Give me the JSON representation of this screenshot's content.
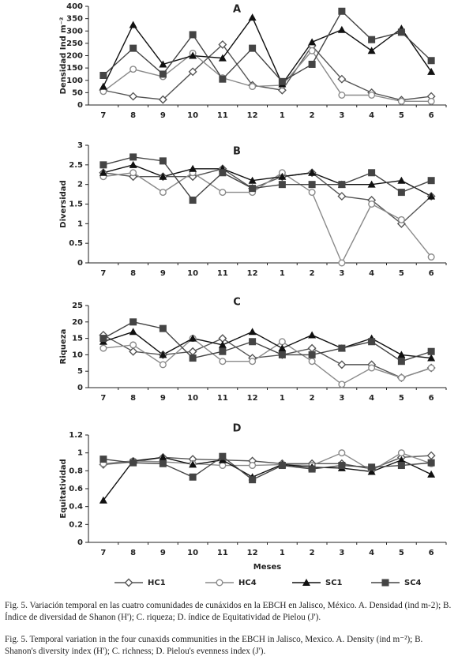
{
  "chart_data": [
    {
      "type": "line",
      "title": "A",
      "ylabel": "Densidad Ind m⁻²",
      "categories": [
        "7",
        "8",
        "9",
        "10",
        "11",
        "12",
        "1",
        "2",
        "3",
        "4",
        "5",
        "6"
      ],
      "ylim": [
        0,
        400
      ],
      "yticks": [
        0,
        50,
        100,
        150,
        200,
        250,
        300,
        350,
        400
      ],
      "series": [
        {
          "color": "#555555",
          "marker": "diamond-open",
          "values": [
            60,
            35,
            22,
            135,
            245,
            80,
            60,
            240,
            105,
            50,
            20,
            35
          ]
        },
        {
          "color": "#8a8a8a",
          "marker": "circle-open",
          "values": [
            55,
            145,
            115,
            210,
            110,
            75,
            80,
            220,
            40,
            40,
            15,
            15
          ]
        },
        {
          "color": "#111111",
          "marker": "triangle",
          "values": [
            75,
            325,
            165,
            200,
            190,
            355,
            85,
            255,
            305,
            220,
            310,
            135
          ]
        },
        {
          "color": "#444444",
          "marker": "square",
          "values": [
            120,
            230,
            125,
            285,
            105,
            230,
            95,
            165,
            380,
            265,
            295,
            180
          ]
        }
      ]
    },
    {
      "type": "line",
      "title": "B",
      "ylabel": "Diversidad",
      "categories": [
        "7",
        "8",
        "9",
        "10",
        "11",
        "12",
        "1",
        "2",
        "3",
        "4",
        "5",
        "6"
      ],
      "ylim": [
        0,
        3
      ],
      "yticks": [
        0,
        0.5,
        1,
        1.5,
        2,
        2.5,
        3
      ],
      "series": [
        {
          "color": "#555555",
          "marker": "diamond-open",
          "values": [
            2.3,
            2.2,
            2.2,
            2.2,
            2.4,
            1.9,
            2.2,
            2.3,
            1.7,
            1.6,
            1.0,
            1.7
          ]
        },
        {
          "color": "#8a8a8a",
          "marker": "circle-open",
          "values": [
            2.2,
            2.3,
            1.8,
            2.3,
            1.8,
            1.8,
            2.3,
            1.8,
            0,
            1.5,
            1.1,
            0.15
          ]
        },
        {
          "color": "#111111",
          "marker": "triangle",
          "values": [
            2.3,
            2.5,
            2.2,
            2.4,
            2.4,
            2.1,
            2.2,
            2.3,
            2.0,
            2.0,
            2.1,
            1.7
          ]
        },
        {
          "color": "#444444",
          "marker": "square",
          "values": [
            2.5,
            2.7,
            2.6,
            1.6,
            2.3,
            1.9,
            2.0,
            2.0,
            2.0,
            2.3,
            1.8,
            2.1
          ]
        }
      ]
    },
    {
      "type": "line",
      "title": "C",
      "ylabel": "Riqueza",
      "categories": [
        "7",
        "8",
        "9",
        "10",
        "11",
        "12",
        "1",
        "2",
        "3",
        "4",
        "5",
        "6"
      ],
      "ylim": [
        0,
        25
      ],
      "yticks": [
        0,
        5,
        10,
        15,
        20,
        25
      ],
      "series": [
        {
          "color": "#555555",
          "marker": "diamond-open",
          "values": [
            16,
            11,
            10,
            11,
            15,
            9,
            10,
            12,
            7,
            7,
            3,
            6
          ]
        },
        {
          "color": "#8a8a8a",
          "marker": "circle-open",
          "values": [
            12,
            13,
            7,
            15,
            8,
            8,
            14,
            8,
            1,
            6,
            3,
            6
          ]
        },
        {
          "color": "#111111",
          "marker": "triangle",
          "values": [
            14,
            17,
            10,
            15,
            13,
            17,
            12,
            16,
            12,
            15,
            10,
            9
          ]
        },
        {
          "color": "#444444",
          "marker": "square",
          "values": [
            15,
            20,
            18,
            9,
            11,
            14,
            10,
            10,
            12,
            14,
            8,
            11
          ]
        }
      ]
    },
    {
      "type": "line",
      "title": "D",
      "ylabel": "Equitatividad",
      "xlabel": "Meses",
      "legend": "bottom",
      "categories": [
        "7",
        "8",
        "9",
        "10",
        "11",
        "12",
        "1",
        "2",
        "3",
        "4",
        "5",
        "6"
      ],
      "ylim": [
        0,
        1.2
      ],
      "yticks": [
        0,
        0.2,
        0.4,
        0.6,
        0.8,
        1,
        1.2
      ],
      "series": [
        {
          "name": "HC1",
          "color": "#555555",
          "marker": "diamond-open",
          "values": [
            0.87,
            0.9,
            0.95,
            0.93,
            0.92,
            0.91,
            0.88,
            0.88,
            0.88,
            0.82,
            0.95,
            0.97
          ]
        },
        {
          "name": "HC4",
          "color": "#8a8a8a",
          "marker": "circle-open",
          "values": [
            0.88,
            0.91,
            0.9,
            0.88,
            0.86,
            0.86,
            0.87,
            0.86,
            1.0,
            0.8,
            1.0,
            0.88
          ]
        },
        {
          "name": "SC1",
          "color": "#111111",
          "marker": "triangle",
          "values": [
            0.47,
            0.91,
            0.95,
            0.87,
            0.92,
            0.73,
            0.87,
            0.84,
            0.83,
            0.79,
            0.92,
            0.76
          ]
        },
        {
          "name": "SC4",
          "color": "#444444",
          "marker": "square",
          "values": [
            0.93,
            0.89,
            0.88,
            0.73,
            0.96,
            0.7,
            0.86,
            0.82,
            0.86,
            0.84,
            0.86,
            0.89
          ]
        }
      ]
    }
  ],
  "captions": [
    "Fig. 5. Variación temporal en las cuatro comunidades de cunáxidos en la EBCH en Jalisco, México. A. Densidad (ind m-2); B. Índice de diversidad de Shanon (H'); C. riqueza; D. índice de Equitatividad de Pielou (J').",
    "Fig. 5. Temporal variation in the four cunaxids communities in the EBCH in Jalisco, Mexico. A. Density (ind m⁻²); B. Shanon's diversity index (H'); C. richness; D. Pielou's evenness index (J')."
  ]
}
